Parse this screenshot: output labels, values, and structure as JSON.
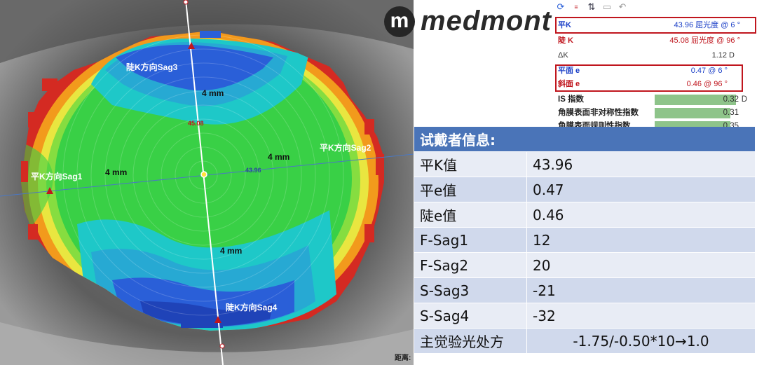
{
  "logo": {
    "mark": "m",
    "text": "medmont"
  },
  "toolbar": {
    "icons": [
      "refresh-icon",
      "sim-k-icon",
      "sort-icon",
      "save-icon",
      "undo-icon"
    ]
  },
  "k_readings": {
    "flat_k": {
      "label": "平K",
      "value": "43.96 屈光度 @",
      "axis": "6 °"
    },
    "steep_k": {
      "label": "陡 K",
      "value": "45.08 屈光度 @",
      "axis": "96 °"
    },
    "delta_k": {
      "label": "ΔK",
      "value": "1.12 D"
    },
    "flat_e": {
      "label": "平面 e",
      "value": "0.47 @",
      "axis": "6 °"
    },
    "steep_e": {
      "label": "斜面 e",
      "value": "0.46 @",
      "axis": "96 °"
    }
  },
  "indices": [
    {
      "label": "IS 指数",
      "value": "0.32",
      "unit": "D",
      "level": 0.82
    },
    {
      "label": "角膜表面非对称性指数",
      "value": "0.31",
      "unit": "",
      "level": 0.7
    },
    {
      "label": "角膜表面规则性指数",
      "value": "0.35",
      "unit": "",
      "level": 0.7
    }
  ],
  "wearer_info": {
    "header": "试戴者信息:",
    "rows": [
      {
        "label": "平K值",
        "value": "43.96"
      },
      {
        "label": "平e值",
        "value": "0.47"
      },
      {
        "label": "陡e值",
        "value": "0.46"
      },
      {
        "label": "F-Sag1",
        "value": "12"
      },
      {
        "label": "F-Sag2",
        "value": "20"
      },
      {
        "label": "S-Sag3",
        "value": "-21"
      },
      {
        "label": "S-Sag4",
        "value": "-32"
      },
      {
        "label": "主觉验光处方",
        "value": "-1.75/-0.50*10→1.0"
      }
    ]
  },
  "map_labels": {
    "sag3": "陡K方向Sag3",
    "sag4": "陡K方向Sag4",
    "sag1": "平K方向Sag1",
    "sag2": "平K方向Sag2",
    "mm_top": "4 mm",
    "mm_bottom": "4 mm",
    "mm_left": "4 mm",
    "mm_right": "4 mm",
    "center_steep": "45.08",
    "center_flat": "43.96"
  },
  "distance_label": "距离:",
  "colors": {
    "red": "#d42a22",
    "orange": "#f29a1c",
    "yellow": "#e9e640",
    "green": "#39d046",
    "cyan": "#1ec8c8",
    "blue": "#2a5fd8",
    "header_blue": "#4a74b8",
    "highlight_red": "#c0161e"
  }
}
